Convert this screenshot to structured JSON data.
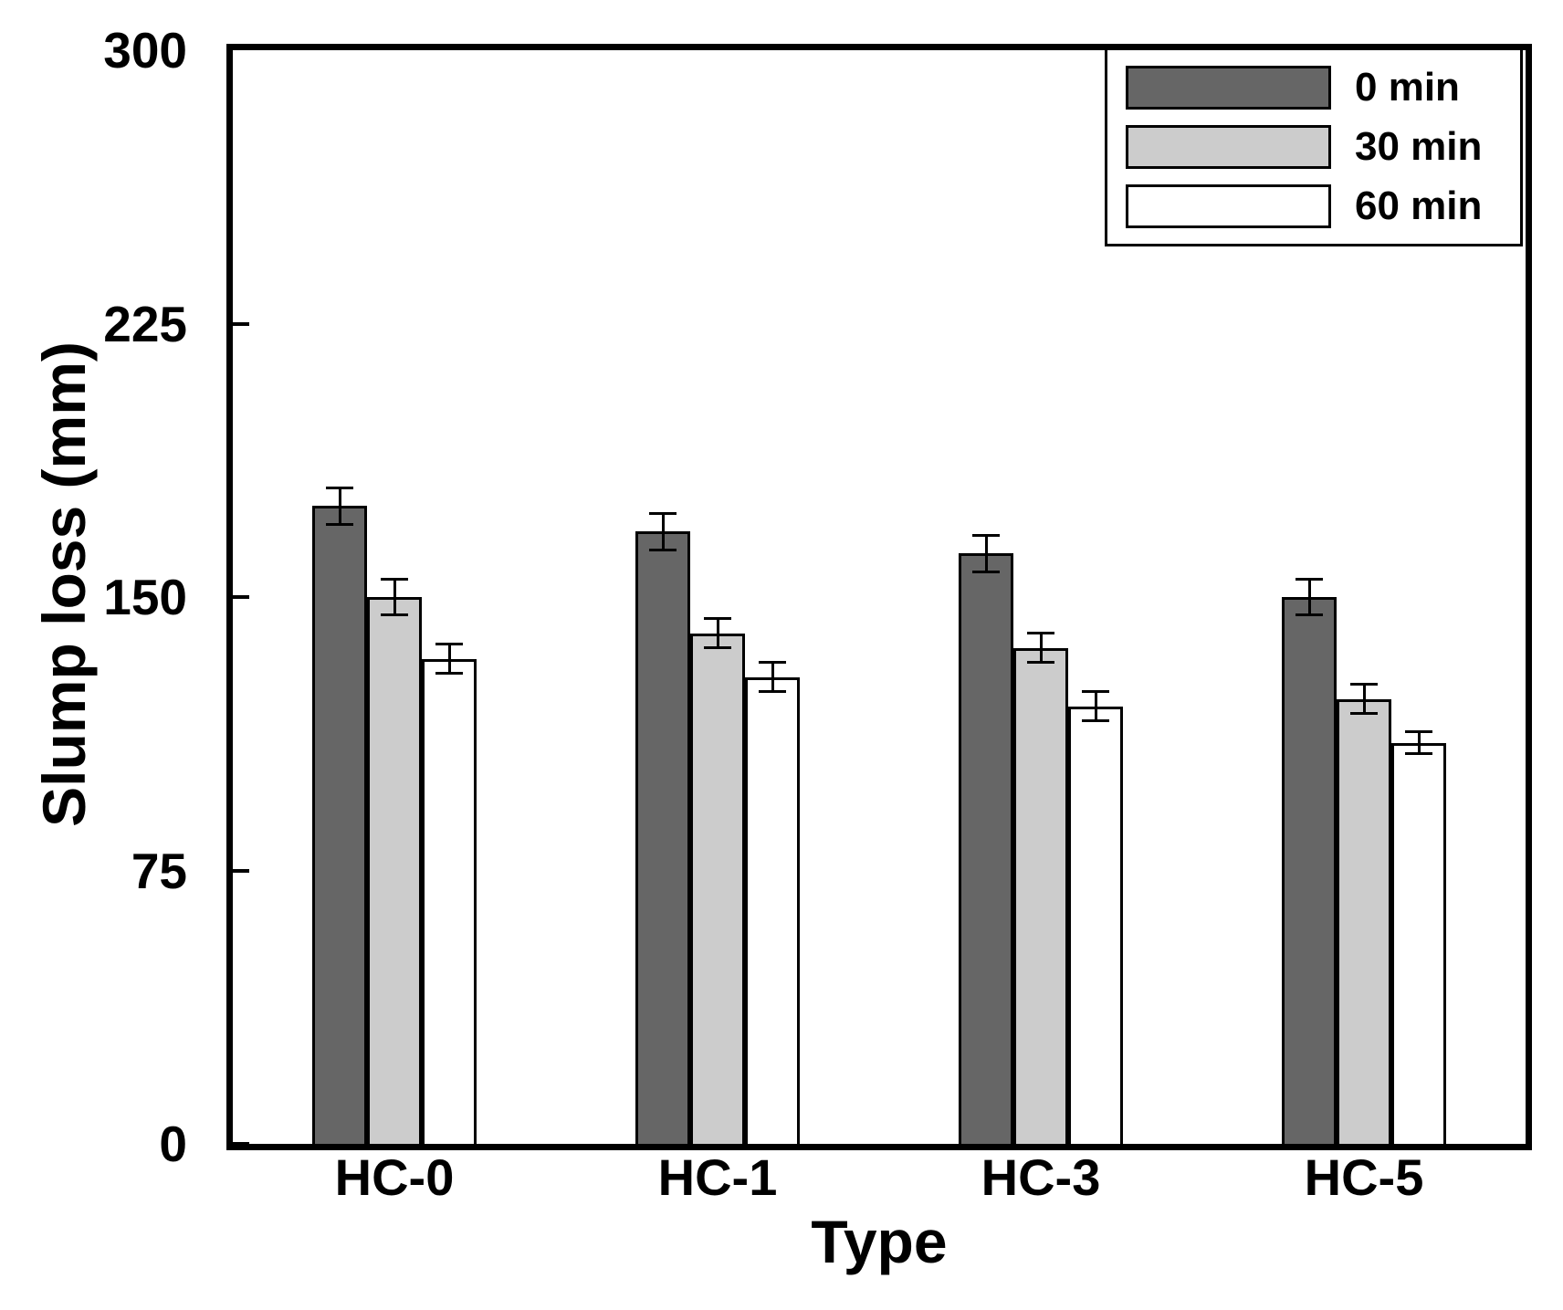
{
  "chart_data": {
    "type": "bar",
    "title": "",
    "xlabel": "Type",
    "ylabel": "Slump loss (mm)",
    "categories": [
      "HC-0",
      "HC-1",
      "HC-3",
      "HC-5"
    ],
    "series": [
      {
        "name": "0 min",
        "color": "#666666",
        "values": [
          175,
          168,
          162,
          150
        ],
        "errors": [
          5,
          5,
          5,
          5
        ]
      },
      {
        "name": "30 min",
        "color": "#cccccc",
        "values": [
          150,
          140,
          136,
          122
        ],
        "errors": [
          5,
          4,
          4,
          4
        ]
      },
      {
        "name": "60 min",
        "color": "#ffffff",
        "values": [
          133,
          128,
          120,
          110
        ],
        "errors": [
          4,
          4,
          4,
          3
        ]
      }
    ],
    "ylim": [
      0,
      300
    ],
    "yticks": [
      0,
      75,
      150,
      225,
      300
    ],
    "grid": false,
    "legend_position": "top-right",
    "bar_edge_color": "#000000",
    "error_bar_color": "#000000"
  }
}
